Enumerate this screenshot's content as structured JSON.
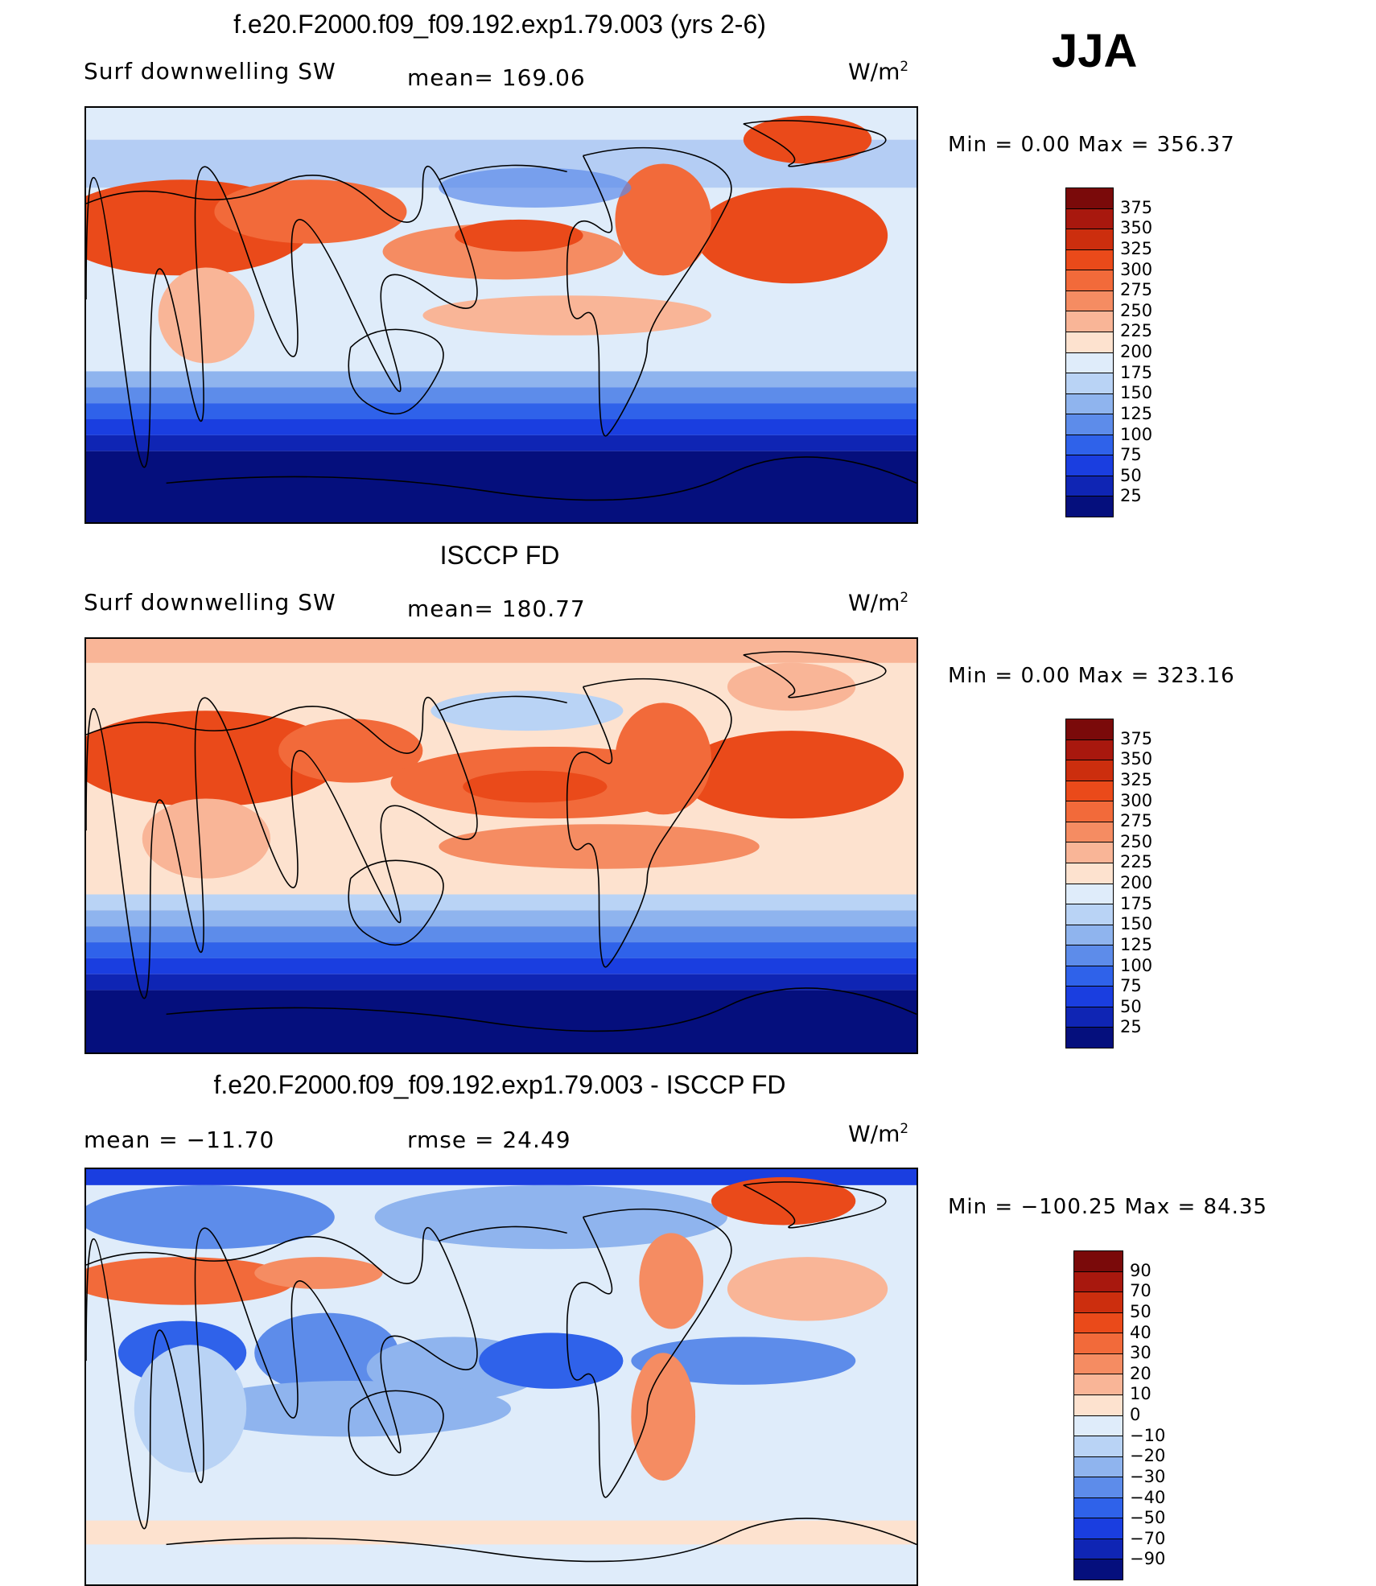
{
  "season": "JJA",
  "panels": [
    {
      "title": "f.e20.F2000.f09_f09.192.exp1.79.003 (yrs 2-6)",
      "left_text": "Surf  downwelling  SW",
      "mid_text": "mean=  169.06",
      "units": "W/m",
      "units_sup": "2",
      "minmax": "Min  =     0.00  Max  =  356.37"
    },
    {
      "title": "ISCCP FD",
      "left_text": "Surf  downwelling  SW",
      "mid_text": "mean=  180.77",
      "units": "W/m",
      "units_sup": "2",
      "minmax": "Min  =     0.00  Max  =  323.16"
    },
    {
      "title": "f.e20.F2000.f09_f09.192.exp1.79.003 - ISCCP FD",
      "left_text": "mean  =  −11.70",
      "mid_text": "rmse  =    24.49",
      "units": "W/m",
      "units_sup": "2",
      "minmax": "Min  = −100.25  Max  =    84.35"
    }
  ],
  "colorbars": {
    "absolute": {
      "labels": [
        "375",
        "350",
        "325",
        "300",
        "275",
        "250",
        "225",
        "200",
        "175",
        "150",
        "125",
        "100",
        "75",
        "50",
        "25"
      ],
      "colors": [
        "#7a0a0a",
        "#a8180e",
        "#cc2e0e",
        "#ea4a1a",
        "#f26a3a",
        "#f58c62",
        "#f9b597",
        "#fde2cf",
        "#dfecfa",
        "#b9d3f5",
        "#8fb4ee",
        "#5d8cea",
        "#2f62ea",
        "#1a3ee0",
        "#0f25b4",
        "#050f7d"
      ]
    },
    "difference": {
      "labels": [
        "90",
        "70",
        "50",
        "40",
        "30",
        "20",
        "10",
        "0",
        "−10",
        "−20",
        "−30",
        "−40",
        "−50",
        "−70",
        "−90"
      ],
      "colors": [
        "#7a0a0a",
        "#a8180e",
        "#cc2e0e",
        "#ea4a1a",
        "#f26a3a",
        "#f58c62",
        "#f9b597",
        "#fde2cf",
        "#dfecfa",
        "#b9d3f5",
        "#8fb4ee",
        "#5d8cea",
        "#2f62ea",
        "#1a3ee0",
        "#0f25b4",
        "#050f7d"
      ]
    }
  },
  "colors": {
    "ocean_deep": "#050f7d",
    "high_flux": "#ea4a1a",
    "coastline": "#000000"
  }
}
